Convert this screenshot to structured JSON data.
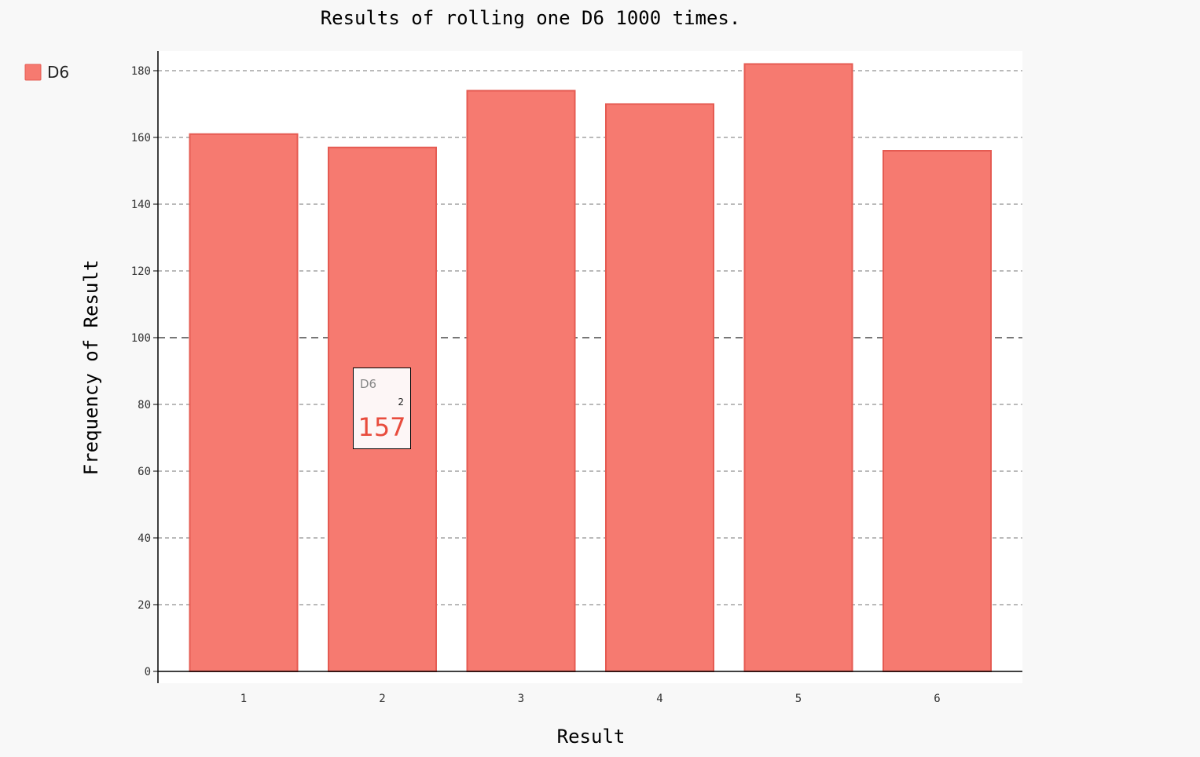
{
  "chart_data": {
    "type": "bar",
    "title": "Results of rolling one D6 1000 times.",
    "xlabel": "Result",
    "ylabel": "Frequency of Result",
    "categories": [
      "1",
      "2",
      "3",
      "4",
      "5",
      "6"
    ],
    "series": [
      {
        "name": "D6",
        "values": [
          161,
          157,
          174,
          170,
          182,
          156
        ]
      }
    ],
    "ylim": [
      0,
      186
    ],
    "yticks": [
      0,
      20,
      40,
      60,
      80,
      100,
      120,
      140,
      160,
      180
    ],
    "y_major_tick": 100,
    "grid": true,
    "legend_position": "top-left",
    "colors": {
      "bar_fill": "#f67a70",
      "bar_stroke": "#e55b52",
      "plot_background": "#ffffff",
      "page_background": "#f8f8f8",
      "tooltip_value": "#e84c3d"
    },
    "tooltip": {
      "series": "D6",
      "x": "2",
      "value": "157"
    }
  }
}
